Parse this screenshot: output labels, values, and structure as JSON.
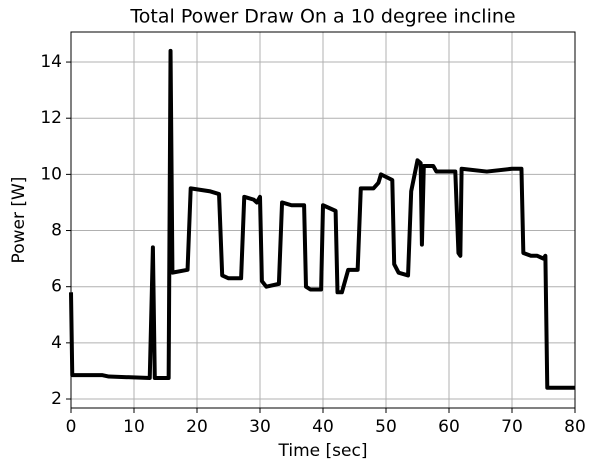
{
  "chart_data": {
    "type": "line",
    "title": "Total Power Draw On a 10 degree incline",
    "x_label": "Time [sec]",
    "y_label": "Power [W]",
    "xlim": [
      0,
      80
    ],
    "ylim": [
      1.68,
      15.07
    ],
    "xticks": [
      0,
      10,
      20,
      30,
      40,
      50,
      60,
      70,
      80
    ],
    "yticks": [
      2,
      4,
      6,
      8,
      10,
      12,
      14
    ],
    "grid": true,
    "series": [
      {
        "name": "Power",
        "color": "#000000",
        "x": [
          0,
          0.2,
          5,
          6,
          12.5,
          13,
          13.3,
          15.5,
          15.8,
          16.1,
          18.5,
          19,
          22,
          23.5,
          24,
          25,
          27,
          27.5,
          29,
          29.5,
          30,
          30.3,
          31,
          33,
          33.5,
          35,
          37,
          37.3,
          38,
          39.7,
          40,
          42,
          42.3,
          43,
          44,
          45.5,
          46,
          48,
          48.8,
          49.2,
          51,
          51.3,
          52,
          53.5,
          54,
          55,
          55.5,
          55.7,
          56,
          57.5,
          58,
          61,
          61.5,
          61.8,
          62,
          66,
          70,
          71.5,
          71.8,
          73,
          74,
          75,
          75.3,
          75.6,
          77,
          80
        ],
        "values": [
          5.8,
          2.85,
          2.85,
          2.8,
          2.75,
          7.4,
          2.75,
          2.75,
          14.4,
          6.5,
          6.6,
          9.5,
          9.4,
          9.3,
          6.4,
          6.3,
          6.3,
          9.2,
          9.1,
          9.0,
          9.2,
          6.2,
          6.0,
          6.1,
          9.0,
          8.9,
          8.9,
          6.0,
          5.9,
          5.9,
          8.9,
          8.7,
          5.8,
          5.8,
          6.6,
          6.6,
          9.5,
          9.5,
          9.7,
          10.0,
          9.8,
          6.8,
          6.5,
          6.4,
          9.4,
          10.5,
          10.4,
          7.5,
          10.3,
          10.3,
          10.1,
          10.1,
          7.2,
          7.1,
          10.2,
          10.1,
          10.2,
          10.2,
          7.2,
          7.1,
          7.1,
          7.0,
          7.1,
          2.4,
          2.4,
          2.4
        ]
      }
    ]
  }
}
